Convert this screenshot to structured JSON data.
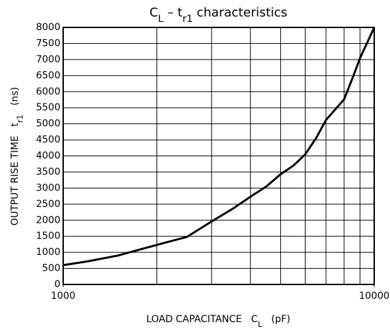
{
  "chart_data": {
    "type": "line",
    "title": [
      {
        "text": "C"
      },
      {
        "text": "L",
        "sub": true
      },
      {
        "text": " – t"
      },
      {
        "text": "r1",
        "sub": true
      },
      {
        "text": " characteristics"
      }
    ],
    "xlabel": [
      {
        "text": "LOAD CAPACITANCE   C"
      },
      {
        "text": "L",
        "sub": true
      },
      {
        "text": "   (pF)"
      }
    ],
    "ylabel": [
      {
        "text": "OUTPUT RISE TIME   t"
      },
      {
        "text": "r1",
        "sub": true
      },
      {
        "text": "   (ns)"
      }
    ],
    "xlog": true,
    "xlim": [
      1000,
      10000
    ],
    "xticks": [
      1000,
      10000
    ],
    "xminor": [
      2000,
      3000,
      4000,
      5000,
      6000,
      7000,
      8000,
      9000
    ],
    "ylim": [
      0,
      8000
    ],
    "yticks": [
      0,
      500,
      1000,
      1500,
      2000,
      2500,
      3000,
      3500,
      4000,
      4500,
      5000,
      5500,
      6000,
      6500,
      7000,
      7500,
      8000
    ],
    "grid": true,
    "series": [
      {
        "color": "#000000",
        "x": [
          1000,
          1200,
          1500,
          2000,
          2500,
          3000,
          3500,
          4000,
          4500,
          5000,
          5500,
          6000,
          6500,
          7000,
          7500,
          8000,
          8500,
          9000,
          9500,
          10000
        ],
        "values": [
          600,
          720,
          900,
          1230,
          1480,
          1960,
          2350,
          2730,
          3050,
          3430,
          3700,
          4050,
          4550,
          5120,
          5450,
          5760,
          6400,
          7040,
          7530,
          8000
        ]
      }
    ]
  }
}
